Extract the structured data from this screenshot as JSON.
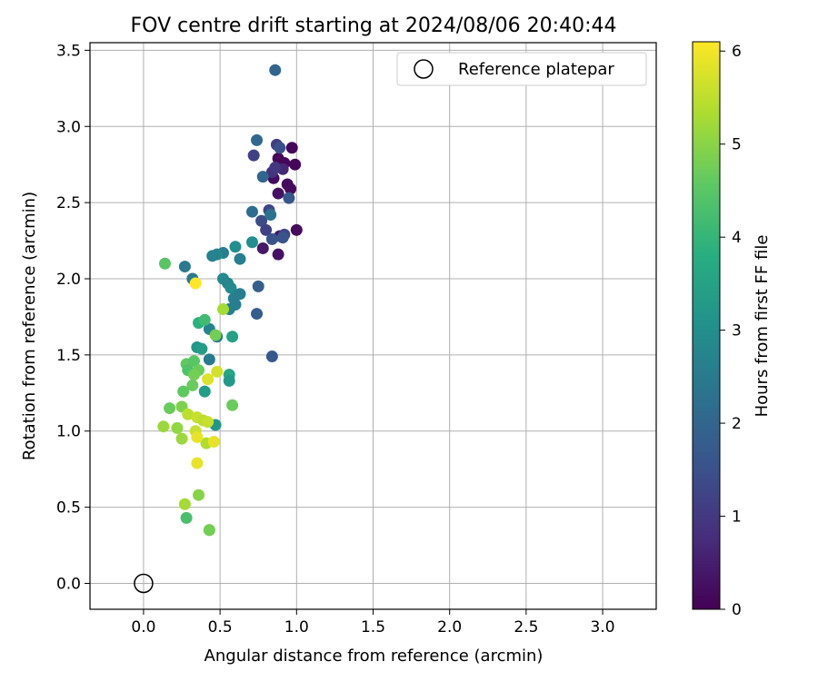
{
  "chart_data": {
    "type": "scatter",
    "title": "FOV centre drift starting at 2024/08/06 20:40:44",
    "xlabel": "Angular distance from reference (arcmin)",
    "ylabel": "Rotation from reference (arcmin)",
    "xlim": [
      -0.35,
      3.35
    ],
    "ylim": [
      -0.17,
      3.55
    ],
    "xticks": [
      0.0,
      0.5,
      1.0,
      1.5,
      2.0,
      2.5,
      3.0
    ],
    "xtick_labels": [
      "0.0",
      "0.5",
      "1.0",
      "1.5",
      "2.0",
      "2.5",
      "3.0"
    ],
    "yticks": [
      0.0,
      0.5,
      1.0,
      1.5,
      2.0,
      2.5,
      3.0,
      3.5
    ],
    "ytick_labels": [
      "0.0",
      "0.5",
      "1.0",
      "1.5",
      "2.0",
      "2.5",
      "3.0",
      "3.5"
    ],
    "grid": true,
    "legend": {
      "placement": "top-right",
      "entries": [
        "Reference platepar"
      ]
    },
    "colorbar": {
      "label": "Hours from first FF file",
      "range": [
        0,
        6.1
      ],
      "ticks": [
        0,
        1,
        2,
        3,
        4,
        5,
        6
      ],
      "tick_labels": [
        "0",
        "1",
        "2",
        "3",
        "4",
        "5",
        "6"
      ],
      "colormap": "viridis"
    },
    "reference_point": {
      "x": 0.0,
      "y": 0.0
    },
    "series": [
      {
        "points": [
          {
            "x": 0.88,
            "y": 2.79,
            "h": 0.1
          },
          {
            "x": 0.97,
            "y": 2.86,
            "h": 0.1
          },
          {
            "x": 0.99,
            "y": 2.75,
            "h": 0.1
          },
          {
            "x": 0.92,
            "y": 2.76,
            "h": 0.1
          },
          {
            "x": 0.85,
            "y": 2.66,
            "h": 0.2
          },
          {
            "x": 0.94,
            "y": 2.62,
            "h": 0.2
          },
          {
            "x": 0.96,
            "y": 2.59,
            "h": 0.2
          },
          {
            "x": 0.88,
            "y": 2.56,
            "h": 0.3
          },
          {
            "x": 1.0,
            "y": 2.32,
            "h": 0.2
          },
          {
            "x": 0.89,
            "y": 2.28,
            "h": 0.4
          },
          {
            "x": 0.78,
            "y": 2.2,
            "h": 0.4
          },
          {
            "x": 0.88,
            "y": 2.16,
            "h": 0.3
          },
          {
            "x": 0.84,
            "y": 2.7,
            "h": 0.9
          },
          {
            "x": 0.87,
            "y": 2.88,
            "h": 1.1
          },
          {
            "x": 0.91,
            "y": 2.72,
            "h": 0.7
          },
          {
            "x": 0.72,
            "y": 2.81,
            "h": 1.2
          },
          {
            "x": 0.82,
            "y": 2.45,
            "h": 1.3
          },
          {
            "x": 0.77,
            "y": 2.38,
            "h": 1.4
          },
          {
            "x": 0.92,
            "y": 2.29,
            "h": 1.3
          },
          {
            "x": 0.86,
            "y": 2.73,
            "h": 1.0
          },
          {
            "x": 0.8,
            "y": 2.32,
            "h": 1.2
          },
          {
            "x": 0.84,
            "y": 2.26,
            "h": 1.6
          },
          {
            "x": 0.91,
            "y": 2.27,
            "h": 1.6
          },
          {
            "x": 0.86,
            "y": 3.37,
            "h": 2.0
          },
          {
            "x": 0.74,
            "y": 2.91,
            "h": 2.1
          },
          {
            "x": 0.89,
            "y": 2.86,
            "h": 1.5
          },
          {
            "x": 0.78,
            "y": 2.67,
            "h": 2.0
          },
          {
            "x": 0.95,
            "y": 2.53,
            "h": 1.7
          },
          {
            "x": 0.71,
            "y": 2.44,
            "h": 2.2
          },
          {
            "x": 0.83,
            "y": 2.42,
            "h": 2.3
          },
          {
            "x": 0.84,
            "y": 1.49,
            "h": 1.7
          },
          {
            "x": 0.75,
            "y": 1.95,
            "h": 1.8
          },
          {
            "x": 0.74,
            "y": 1.77,
            "h": 1.8
          },
          {
            "x": 0.71,
            "y": 2.24,
            "h": 3.0
          },
          {
            "x": 0.6,
            "y": 2.21,
            "h": 3.0
          },
          {
            "x": 0.52,
            "y": 2.17,
            "h": 2.6
          },
          {
            "x": 0.48,
            "y": 2.16,
            "h": 2.8
          },
          {
            "x": 0.45,
            "y": 2.15,
            "h": 2.7
          },
          {
            "x": 0.63,
            "y": 2.13,
            "h": 2.6
          },
          {
            "x": 0.27,
            "y": 2.08,
            "h": 2.5
          },
          {
            "x": 0.32,
            "y": 2.0,
            "h": 2.5
          },
          {
            "x": 0.52,
            "y": 2.0,
            "h": 2.9
          },
          {
            "x": 0.55,
            "y": 1.97,
            "h": 2.8
          },
          {
            "x": 0.57,
            "y": 1.94,
            "h": 2.9
          },
          {
            "x": 0.63,
            "y": 1.9,
            "h": 2.6
          },
          {
            "x": 0.59,
            "y": 1.87,
            "h": 2.6
          },
          {
            "x": 0.6,
            "y": 1.83,
            "h": 2.6
          },
          {
            "x": 0.56,
            "y": 1.8,
            "h": 2.6
          },
          {
            "x": 0.43,
            "y": 1.67,
            "h": 2.7
          },
          {
            "x": 0.48,
            "y": 1.62,
            "h": 2.5
          },
          {
            "x": 0.43,
            "y": 1.47,
            "h": 2.5
          },
          {
            "x": 0.35,
            "y": 1.55,
            "h": 3.2
          },
          {
            "x": 0.38,
            "y": 1.54,
            "h": 3.4
          },
          {
            "x": 0.58,
            "y": 1.62,
            "h": 3.5
          },
          {
            "x": 0.56,
            "y": 1.37,
            "h": 3.6
          },
          {
            "x": 0.56,
            "y": 1.33,
            "h": 3.3
          },
          {
            "x": 0.4,
            "y": 1.26,
            "h": 3.4
          },
          {
            "x": 0.47,
            "y": 1.04,
            "h": 3.2
          },
          {
            "x": 0.36,
            "y": 1.71,
            "h": 3.9
          },
          {
            "x": 0.4,
            "y": 1.73,
            "h": 4.2
          },
          {
            "x": 0.14,
            "y": 2.1,
            "h": 4.5
          },
          {
            "x": 0.28,
            "y": 1.44,
            "h": 4.6
          },
          {
            "x": 0.29,
            "y": 1.4,
            "h": 4.4
          },
          {
            "x": 0.33,
            "y": 1.46,
            "h": 4.5
          },
          {
            "x": 0.36,
            "y": 1.4,
            "h": 4.7
          },
          {
            "x": 0.33,
            "y": 1.37,
            "h": 4.8
          },
          {
            "x": 0.32,
            "y": 1.3,
            "h": 4.7
          },
          {
            "x": 0.26,
            "y": 1.26,
            "h": 4.6
          },
          {
            "x": 0.17,
            "y": 1.15,
            "h": 4.7
          },
          {
            "x": 0.25,
            "y": 1.16,
            "h": 4.9
          },
          {
            "x": 0.58,
            "y": 1.17,
            "h": 4.7
          },
          {
            "x": 0.28,
            "y": 0.43,
            "h": 4.3
          },
          {
            "x": 0.47,
            "y": 1.63,
            "h": 4.8
          },
          {
            "x": 0.52,
            "y": 1.8,
            "h": 5.3
          },
          {
            "x": 0.36,
            "y": 0.58,
            "h": 5.0
          },
          {
            "x": 0.27,
            "y": 0.52,
            "h": 5.3
          },
          {
            "x": 0.43,
            "y": 0.35,
            "h": 5.2
          },
          {
            "x": 0.43,
            "y": 0.35,
            "h": 4.8
          },
          {
            "x": 0.13,
            "y": 1.03,
            "h": 5.2
          },
          {
            "x": 0.22,
            "y": 1.02,
            "h": 5.1
          },
          {
            "x": 0.25,
            "y": 0.95,
            "h": 5.2
          },
          {
            "x": 0.29,
            "y": 1.11,
            "h": 5.5
          },
          {
            "x": 0.35,
            "y": 1.09,
            "h": 5.6
          },
          {
            "x": 0.39,
            "y": 1.07,
            "h": 5.5
          },
          {
            "x": 0.42,
            "y": 1.06,
            "h": 5.6
          },
          {
            "x": 0.34,
            "y": 1.0,
            "h": 5.6
          },
          {
            "x": 0.41,
            "y": 0.92,
            "h": 5.4
          },
          {
            "x": 0.48,
            "y": 1.39,
            "h": 5.7
          },
          {
            "x": 0.42,
            "y": 1.34,
            "h": 5.8
          },
          {
            "x": 0.35,
            "y": 0.96,
            "h": 5.9
          },
          {
            "x": 0.46,
            "y": 0.93,
            "h": 5.9
          },
          {
            "x": 0.35,
            "y": 0.79,
            "h": 5.9
          },
          {
            "x": 0.34,
            "y": 1.97,
            "h": 6.1
          }
        ]
      }
    ]
  }
}
